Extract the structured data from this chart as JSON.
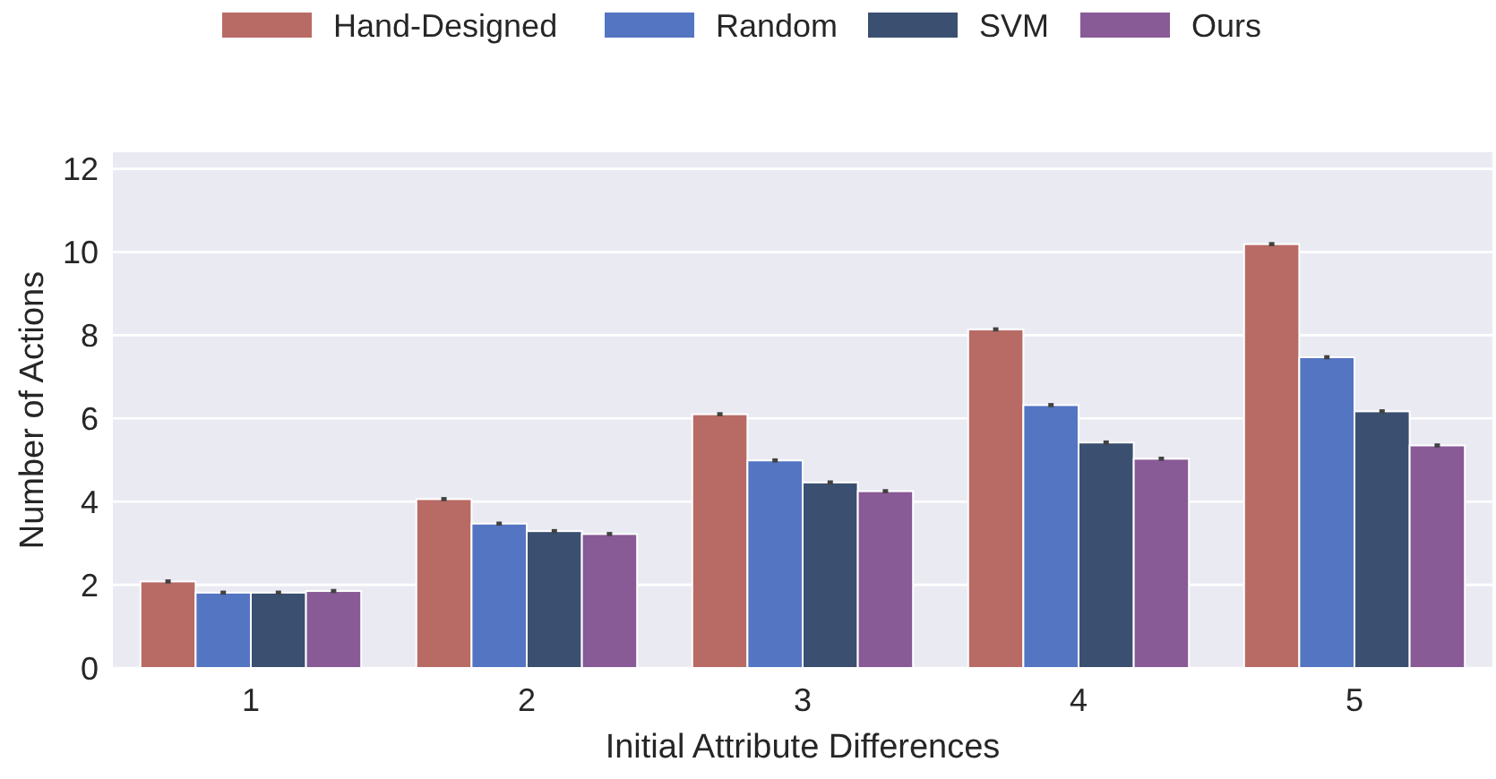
{
  "chart_data": {
    "type": "bar",
    "xlabel": "Initial Attribute Differences",
    "ylabel": "Number of Actions",
    "categories": [
      "1",
      "2",
      "3",
      "4",
      "5"
    ],
    "series": [
      {
        "name": "Hand-Designed",
        "color": "#b86b65",
        "values": [
          2.08,
          4.06,
          6.1,
          8.14,
          10.19
        ],
        "errors": [
          0.05,
          0.05,
          0.05,
          0.05,
          0.05
        ]
      },
      {
        "name": "Random",
        "color": "#5475c2",
        "values": [
          1.81,
          3.47,
          4.99,
          6.32,
          7.47
        ],
        "errors": [
          0.05,
          0.05,
          0.05,
          0.05,
          0.05
        ]
      },
      {
        "name": "SVM",
        "color": "#3b5070",
        "values": [
          1.81,
          3.29,
          4.46,
          5.42,
          6.17
        ],
        "errors": [
          0.05,
          0.05,
          0.05,
          0.05,
          0.05
        ]
      },
      {
        "name": "Ours",
        "color": "#885a96",
        "values": [
          1.85,
          3.22,
          4.25,
          5.03,
          5.35
        ],
        "errors": [
          0.05,
          0.05,
          0.05,
          0.05,
          0.05
        ]
      }
    ],
    "ylim": [
      0,
      12.4
    ],
    "yticks": [
      0,
      2,
      4,
      6,
      8,
      10,
      12
    ],
    "grid": "y",
    "legend": "top"
  }
}
